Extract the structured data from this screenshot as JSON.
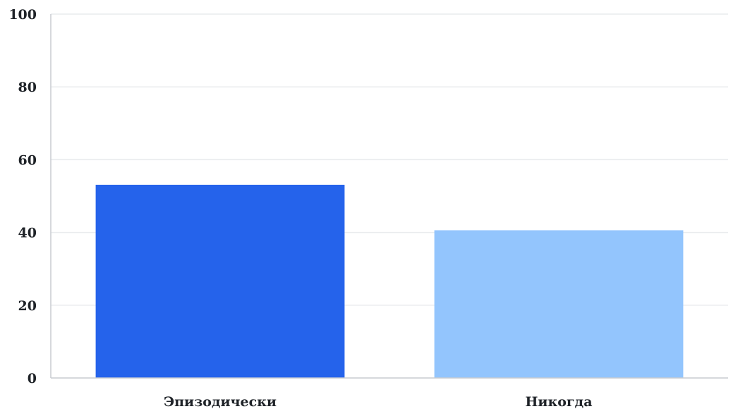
{
  "chart_data": {
    "type": "bar",
    "categories": [
      "Эпизодически",
      "Никогда"
    ],
    "values": [
      53.1,
      40.6
    ],
    "colors": [
      "#2563eb",
      "#93c5fd"
    ],
    "ylim": [
      0,
      100
    ],
    "yticks": [
      0,
      20,
      40,
      60,
      80,
      100
    ],
    "grid": true,
    "title": "",
    "xlabel": "",
    "ylabel": ""
  }
}
